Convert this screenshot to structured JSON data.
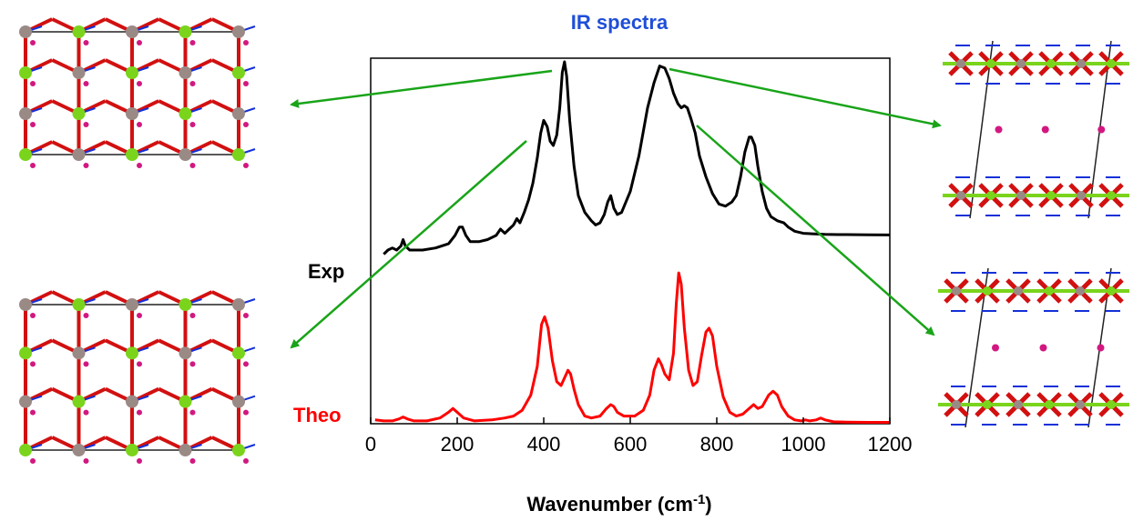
{
  "chart_data": {
    "type": "line",
    "title": "IR spectra",
    "xlabel": "Wavenumber (cm",
    "xlabel_sup": "-1",
    "xlabel_end": ")",
    "ylabel": "",
    "xlim": [
      0,
      1200
    ],
    "ylim": [
      0,
      1
    ],
    "x_ticks": [
      "0",
      "200",
      "400",
      "600",
      "800",
      "1000",
      "1200"
    ],
    "grid": false,
    "series": [
      {
        "name": "Exp",
        "color": "#000000",
        "x": [
          30,
          40,
          50,
          60,
          70,
          75,
          80,
          90,
          100,
          120,
          150,
          180,
          195,
          205,
          212,
          220,
          230,
          250,
          270,
          290,
          300,
          310,
          320,
          330,
          338,
          345,
          355,
          365,
          375,
          385,
          393,
          400,
          408,
          415,
          422,
          430,
          437,
          443,
          448,
          453,
          460,
          470,
          480,
          495,
          510,
          520,
          530,
          540,
          548,
          555,
          562,
          570,
          580,
          600,
          620,
          640,
          655,
          668,
          680,
          690,
          700,
          710,
          718,
          725,
          732,
          740,
          750,
          760,
          775,
          790,
          805,
          820,
          835,
          845,
          855,
          865,
          875,
          880,
          888,
          895,
          905,
          915,
          925,
          940,
          955,
          965,
          980,
          1000,
          1020,
          1050,
          1080,
          1100,
          1150,
          1200
        ],
        "y": [
          0.08,
          0.1,
          0.11,
          0.1,
          0.12,
          0.15,
          0.12,
          0.1,
          0.1,
          0.1,
          0.11,
          0.13,
          0.17,
          0.21,
          0.21,
          0.17,
          0.14,
          0.14,
          0.15,
          0.17,
          0.2,
          0.18,
          0.2,
          0.22,
          0.25,
          0.23,
          0.28,
          0.34,
          0.42,
          0.54,
          0.66,
          0.72,
          0.69,
          0.62,
          0.6,
          0.65,
          0.78,
          0.95,
          1.0,
          0.93,
          0.72,
          0.5,
          0.36,
          0.28,
          0.24,
          0.22,
          0.23,
          0.27,
          0.33,
          0.36,
          0.3,
          0.27,
          0.28,
          0.38,
          0.55,
          0.78,
          0.9,
          0.98,
          0.97,
          0.92,
          0.85,
          0.8,
          0.78,
          0.79,
          0.78,
          0.73,
          0.66,
          0.55,
          0.45,
          0.37,
          0.32,
          0.31,
          0.33,
          0.36,
          0.45,
          0.57,
          0.64,
          0.64,
          0.6,
          0.5,
          0.38,
          0.3,
          0.26,
          0.24,
          0.23,
          0.21,
          0.19,
          0.18,
          0.178,
          0.175,
          0.174,
          0.174,
          0.173,
          0.172
        ]
      },
      {
        "name": "Theo",
        "color": "#ff0000",
        "x": [
          10,
          30,
          50,
          65,
          75,
          85,
          100,
          130,
          160,
          180,
          190,
          200,
          215,
          240,
          280,
          310,
          330,
          350,
          370,
          385,
          395,
          402,
          410,
          420,
          430,
          440,
          450,
          456,
          462,
          470,
          480,
          495,
          510,
          530,
          545,
          555,
          562,
          570,
          585,
          610,
          630,
          645,
          655,
          665,
          672,
          680,
          690,
          700,
          706,
          712,
          718,
          725,
          735,
          745,
          755,
          765,
          775,
          782,
          790,
          800,
          815,
          830,
          845,
          860,
          875,
          885,
          895,
          905,
          920,
          930,
          940,
          950,
          965,
          980,
          995,
          1005,
          1015,
          1030,
          1040,
          1050,
          1070,
          1100,
          1150,
          1200
        ],
        "y": [
          0.02,
          0.015,
          0.015,
          0.025,
          0.035,
          0.025,
          0.015,
          0.015,
          0.03,
          0.06,
          0.08,
          0.06,
          0.03,
          0.015,
          0.02,
          0.03,
          0.04,
          0.07,
          0.15,
          0.3,
          0.52,
          0.56,
          0.5,
          0.33,
          0.22,
          0.2,
          0.25,
          0.28,
          0.26,
          0.18,
          0.1,
          0.04,
          0.03,
          0.04,
          0.08,
          0.1,
          0.09,
          0.06,
          0.04,
          0.04,
          0.07,
          0.15,
          0.28,
          0.34,
          0.31,
          0.26,
          0.23,
          0.37,
          0.62,
          0.79,
          0.73,
          0.5,
          0.28,
          0.2,
          0.22,
          0.36,
          0.48,
          0.5,
          0.46,
          0.3,
          0.14,
          0.06,
          0.04,
          0.05,
          0.08,
          0.1,
          0.08,
          0.09,
          0.15,
          0.17,
          0.15,
          0.09,
          0.04,
          0.02,
          0.015,
          0.02,
          0.015,
          0.02,
          0.03,
          0.02,
          0.01,
          0.008,
          0.007,
          0.007
        ]
      }
    ]
  },
  "colors": {
    "title": "#1f4fd8",
    "arrow": "#19a419",
    "exp": "#000000",
    "theo": "#ff0000"
  },
  "images": {
    "top_left": "crystal-structure-top-view",
    "bottom_left": "crystal-structure-top-view",
    "top_right": "crystal-structure-side-view",
    "bottom_right": "crystal-structure-side-view"
  }
}
